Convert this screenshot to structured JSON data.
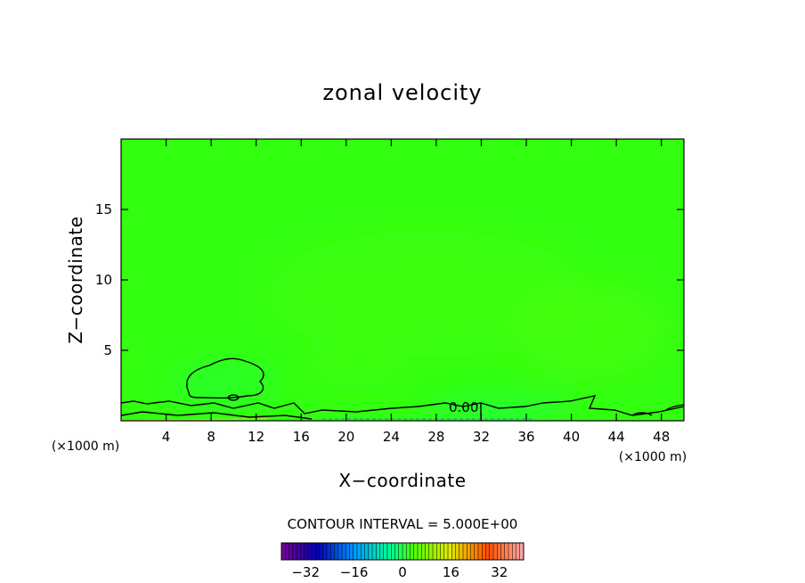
{
  "chart_data": {
    "type": "heatmap",
    "title": "zonal velocity",
    "xlabel": "X−coordinate",
    "ylabel": "Z−coordinate",
    "x_unit_left": "(×1000 m)",
    "x_unit_right": "(×1000 m)",
    "xlim": [
      0,
      50
    ],
    "ylim": [
      0,
      20
    ],
    "x_ticks": [
      4,
      8,
      12,
      16,
      20,
      24,
      28,
      32,
      36,
      40,
      44,
      48
    ],
    "y_ticks": [
      5,
      10,
      15
    ],
    "contour_label": "0.00",
    "contour_interval_text": "CONTOUR INTERVAL = 5.000E+00",
    "colorbar": {
      "min": -40,
      "max": 40,
      "ticks": [
        -32,
        -16,
        0,
        16,
        32
      ],
      "tick_labels": [
        "−32",
        "−16",
        "0",
        "16",
        "32"
      ]
    },
    "field_base_color": "#33ff11",
    "colors": {
      "background_field": "#33ff11",
      "positive_patch": "#44ff00",
      "negative_patch": "#22ff33"
    }
  }
}
